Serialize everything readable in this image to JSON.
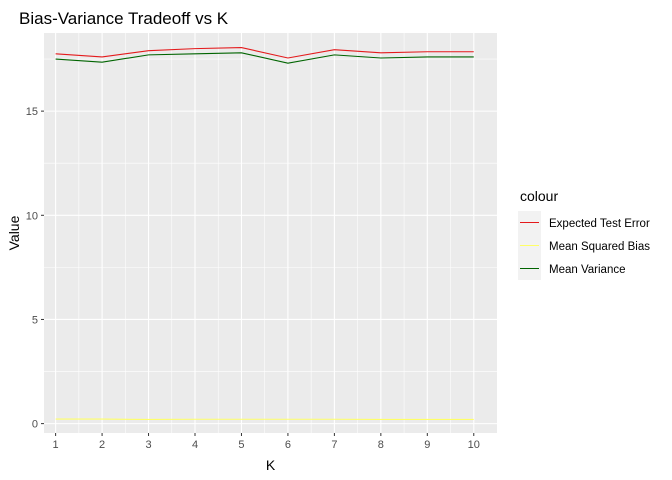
{
  "chart_data": {
    "type": "line",
    "title": "Bias-Variance Tradeoff vs K",
    "xlabel": "K",
    "ylabel": "Value",
    "x": [
      1,
      2,
      3,
      4,
      5,
      6,
      7,
      8,
      9,
      10
    ],
    "xlim": [
      0.75,
      10.5
    ],
    "ylim": [
      -0.45,
      18.75
    ],
    "xticks": [
      "1",
      "2",
      "3",
      "4",
      "5",
      "6",
      "7",
      "8",
      "9",
      "10"
    ],
    "yticks": [
      0,
      5,
      10,
      15
    ],
    "ytick_labels": [
      "0",
      "5",
      "10",
      "15"
    ],
    "grid": true,
    "legend_position": "right",
    "legend_title": "colour",
    "series": [
      {
        "name": "Expected Test Error",
        "color": "#e41a1c",
        "values": [
          17.75,
          17.6,
          17.9,
          18.0,
          18.05,
          17.55,
          17.95,
          17.8,
          17.85,
          17.85
        ]
      },
      {
        "name": "Mean Squared Bias",
        "color": "#ffff66",
        "values": [
          0.22,
          0.22,
          0.2,
          0.21,
          0.21,
          0.21,
          0.21,
          0.2,
          0.2,
          0.2
        ]
      },
      {
        "name": "Mean Variance",
        "color": "#006400",
        "values": [
          17.5,
          17.35,
          17.7,
          17.75,
          17.8,
          17.3,
          17.7,
          17.55,
          17.6,
          17.6
        ]
      }
    ]
  }
}
